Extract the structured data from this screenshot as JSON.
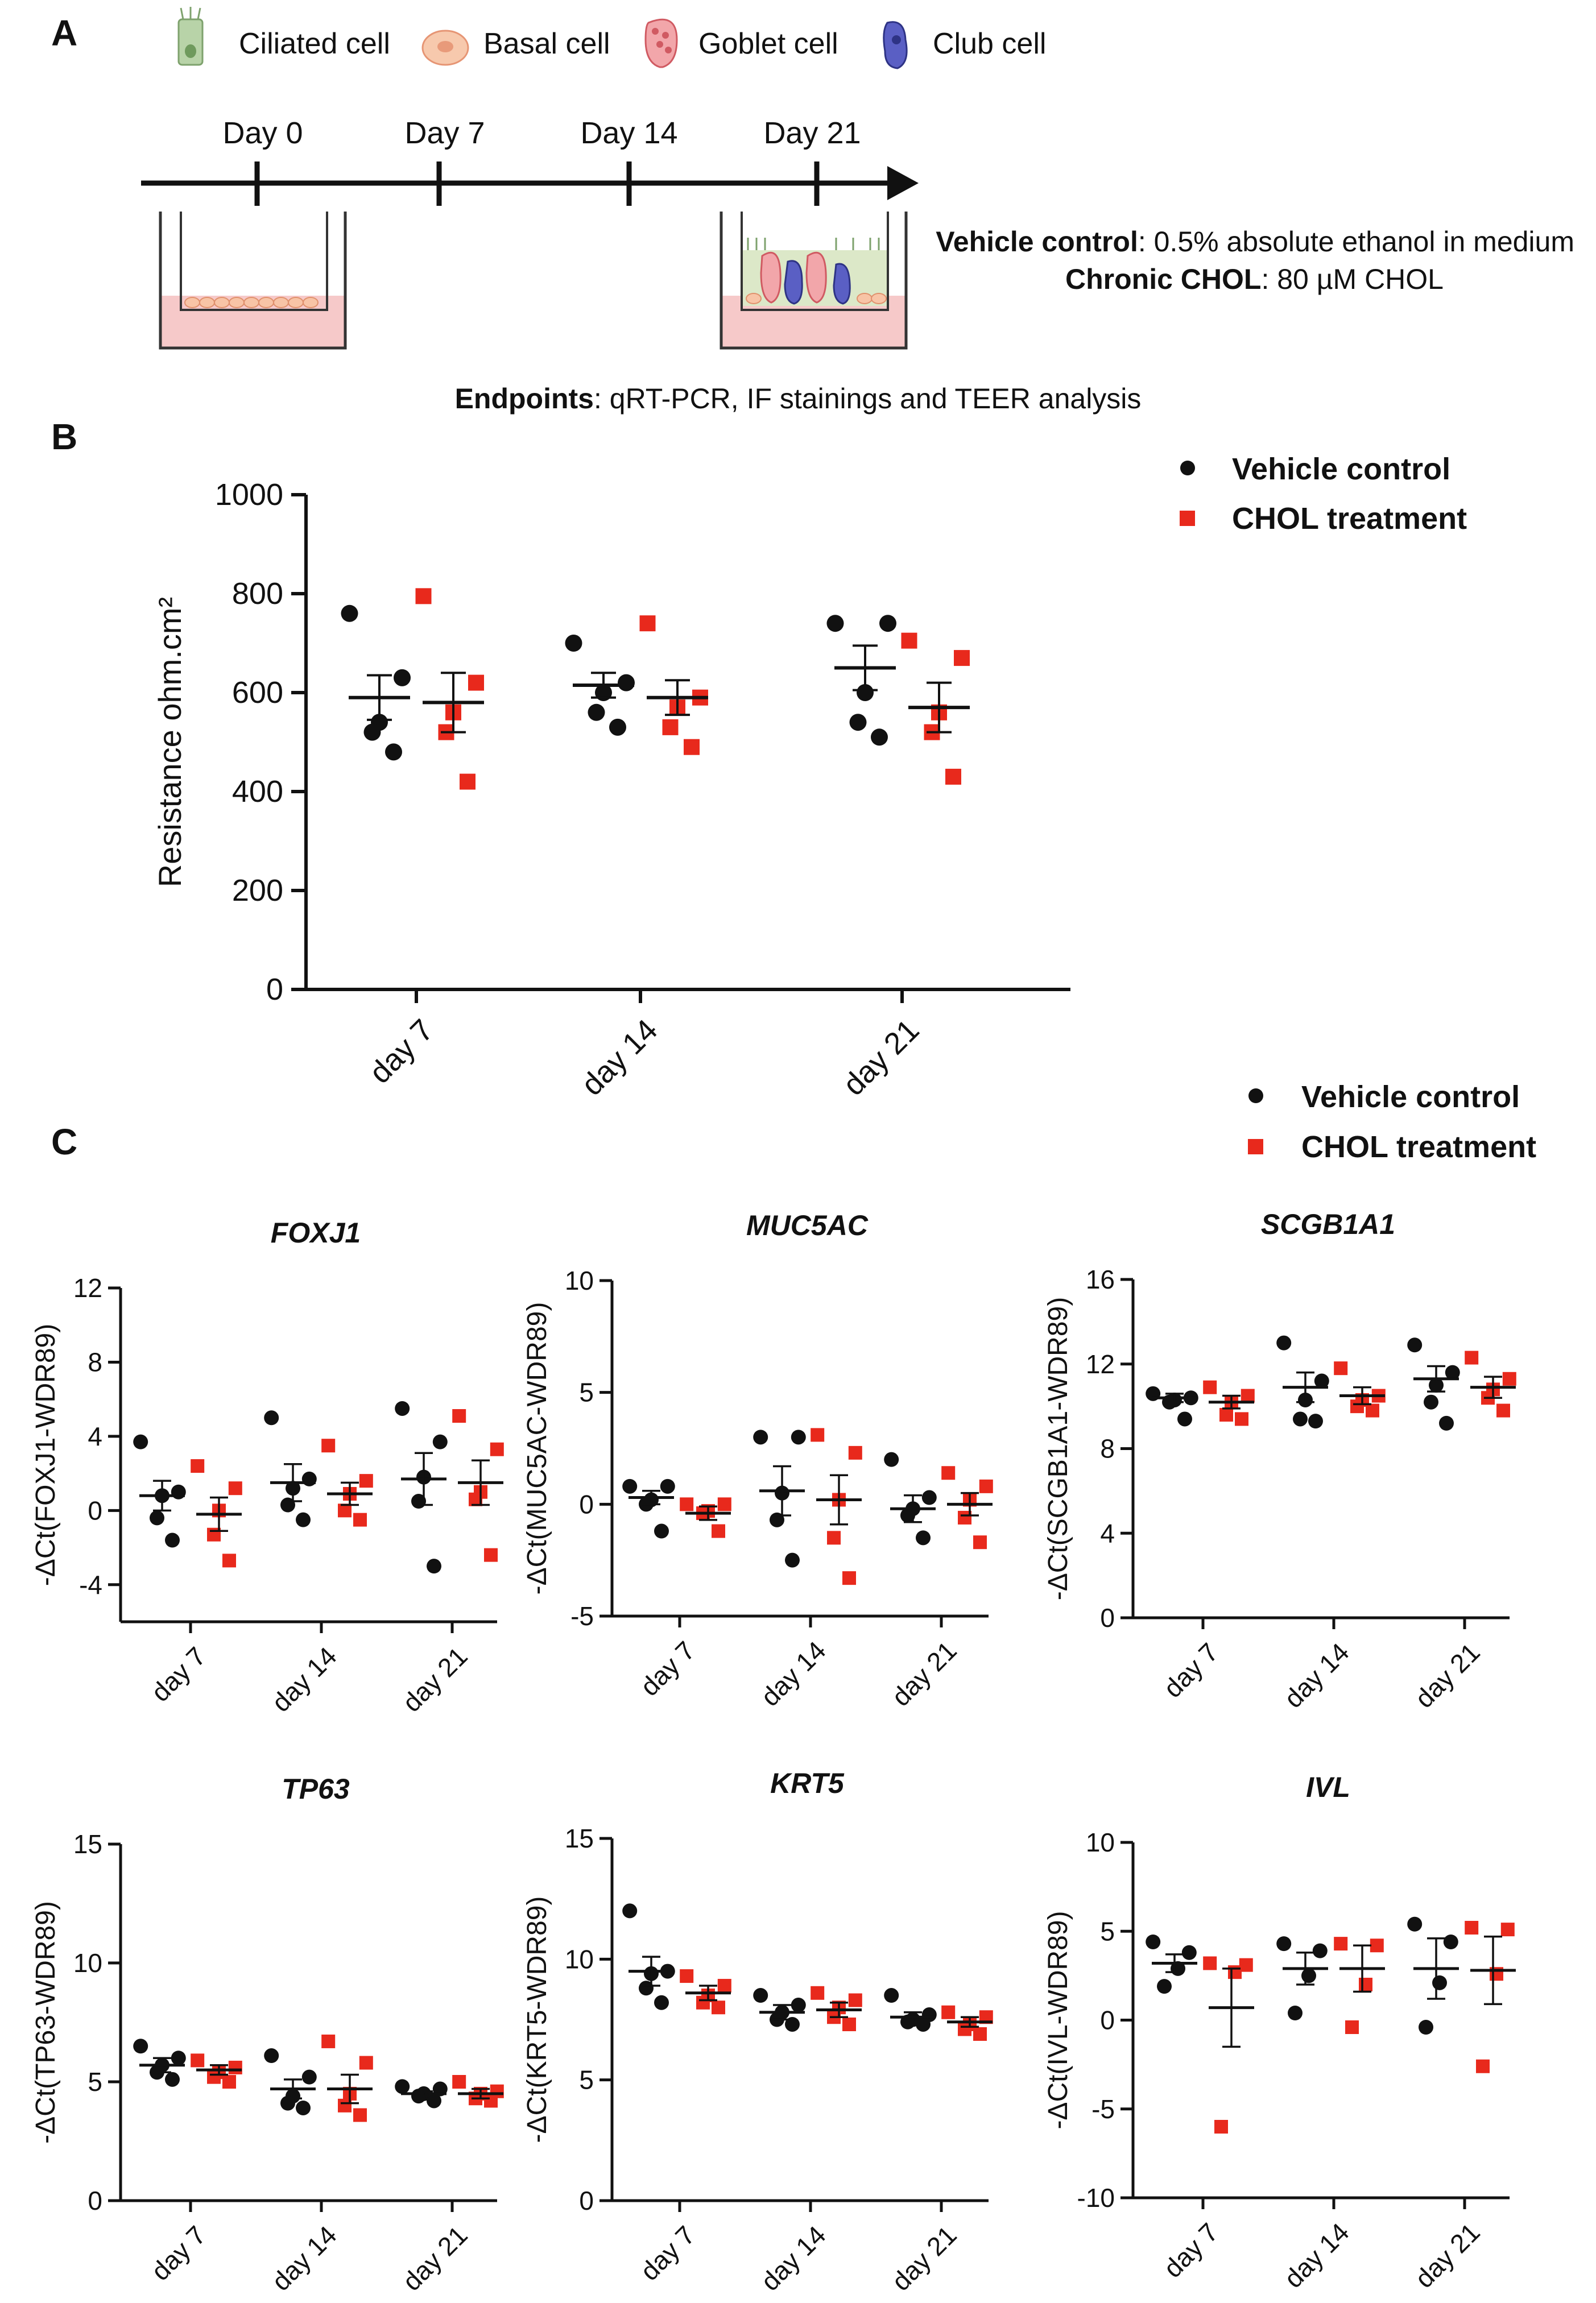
{
  "panelA": {
    "letter": "A",
    "cell_types": [
      {
        "label": "Ciliated cell",
        "icon": "ciliated-cell-icon",
        "color": "#a9c79a"
      },
      {
        "label": "Basal cell",
        "icon": "basal-cell-icon",
        "color": "#f5b79a"
      },
      {
        "label": "Goblet cell",
        "icon": "goblet-cell-icon",
        "color": "#e87a80"
      },
      {
        "label": "Club cell",
        "icon": "club-cell-icon",
        "color": "#4a4fb0"
      }
    ],
    "timeline": [
      "Day 0",
      "Day 7",
      "Day 14",
      "Day 21"
    ],
    "vehicle_name": "Vehicle control",
    "vehicle_desc": ": 0.5% absolute ethanol in medium",
    "chol_name": "Chronic CHOL",
    "chol_desc": ": 80 µM CHOL",
    "endpoints_name": "Endpoints",
    "endpoints_desc": ": qRT-PCR, IF stainings and TEER analysis"
  },
  "panelB": {
    "letter": "B",
    "legend": [
      {
        "label": "Vehicle control",
        "color": "#111111",
        "shape": "circle"
      },
      {
        "label": "CHOL treatment",
        "color": "#e8291c",
        "shape": "square"
      }
    ]
  },
  "panelC": {
    "letter": "C",
    "legend": [
      {
        "label": "Vehicle control",
        "color": "#111111",
        "shape": "circle"
      },
      {
        "label": "CHOL treatment",
        "color": "#e8291c",
        "shape": "square"
      }
    ]
  },
  "colors": {
    "vehicle": "#111111",
    "chol": "#e8291c"
  },
  "chart_data": [
    {
      "id": "teer",
      "type": "scatter",
      "title": "",
      "ylabel": "Resistance ohm.cm²",
      "ylim": [
        0,
        1000
      ],
      "yticks": [
        "0",
        "200",
        "400",
        "600",
        "800",
        "1000"
      ],
      "categories": [
        "day 7",
        "day 14",
        "day 21"
      ],
      "series": [
        {
          "name": "Vehicle control",
          "points": [
            [
              760,
              630,
              540,
              520,
              480
            ],
            [
              700,
              620,
              600,
              560,
              530
            ],
            [
              740,
              740,
              600,
              540,
              510
            ]
          ],
          "mean": [
            590,
            615,
            650
          ],
          "sem": [
            45,
            25,
            45
          ]
        },
        {
          "name": "CHOL treatment",
          "points": [
            [
              795,
              620,
              560,
              520,
              420
            ],
            [
              740,
              590,
              570,
              530,
              490
            ],
            [
              705,
              670,
              560,
              520,
              430
            ]
          ],
          "mean": [
            580,
            590,
            570
          ],
          "sem": [
            60,
            35,
            50
          ]
        }
      ]
    },
    {
      "id": "foxj1",
      "type": "scatter",
      "title": "FOXJ1",
      "ylabel": "-ΔCt(FOXJ1-WDR89)",
      "ylim": [
        -6,
        12
      ],
      "yticks": [
        "-4",
        "0",
        "4",
        "8",
        "12"
      ],
      "categories": [
        "day 7",
        "day 14",
        "day 21"
      ],
      "series": [
        {
          "name": "Vehicle control",
          "points": [
            [
              3.7,
              1.0,
              0.8,
              -0.4,
              -1.6
            ],
            [
              5.0,
              1.7,
              1.2,
              0.3,
              -0.5
            ],
            [
              5.5,
              3.7,
              1.8,
              0.5,
              -3.0
            ]
          ],
          "mean": [
            0.8,
            1.5,
            1.7
          ],
          "sem": [
            0.8,
            1.0,
            1.4
          ]
        },
        {
          "name": "CHOL treatment",
          "points": [
            [
              2.4,
              1.2,
              0.0,
              -1.3,
              -2.7
            ],
            [
              3.5,
              1.6,
              0.9,
              0.0,
              -0.5
            ],
            [
              5.1,
              3.3,
              1.0,
              0.6,
              -2.4
            ]
          ],
          "mean": [
            -0.2,
            0.9,
            1.5
          ],
          "sem": [
            0.9,
            0.6,
            1.2
          ]
        }
      ]
    },
    {
      "id": "muc5ac",
      "type": "scatter",
      "title": "MUC5AC",
      "ylabel": "-ΔCt(MUC5AC-WDR89)",
      "ylim": [
        -5,
        10
      ],
      "yticks": [
        "-5",
        "0",
        "5",
        "10"
      ],
      "categories": [
        "day 7",
        "day 14",
        "day 21"
      ],
      "series": [
        {
          "name": "Vehicle control",
          "points": [
            [
              0.8,
              0.8,
              0.2,
              0.0,
              -1.2
            ],
            [
              3.0,
              3.0,
              0.5,
              -0.7,
              -2.5
            ],
            [
              2.0,
              0.3,
              -0.2,
              -0.5,
              -1.5
            ]
          ],
          "mean": [
            0.3,
            0.6,
            -0.2
          ],
          "sem": [
            0.3,
            1.1,
            0.6
          ]
        },
        {
          "name": "CHOL treatment",
          "points": [
            [
              0.0,
              0.0,
              -0.3,
              -0.4,
              -1.2
            ],
            [
              3.1,
              2.3,
              0.2,
              -1.5,
              -3.3
            ],
            [
              1.4,
              0.8,
              0.2,
              -0.6,
              -1.7
            ]
          ],
          "mean": [
            -0.4,
            0.2,
            0.0
          ],
          "sem": [
            0.3,
            1.1,
            0.5
          ]
        }
      ]
    },
    {
      "id": "scgb1a1",
      "type": "scatter",
      "title": "SCGB1A1",
      "ylabel": "-ΔCt(SCGB1A1-WDR89)",
      "ylim": [
        0,
        16
      ],
      "yticks": [
        "0",
        "4",
        "8",
        "12",
        "16"
      ],
      "categories": [
        "day 7",
        "day 14",
        "day 21"
      ],
      "series": [
        {
          "name": "Vehicle control",
          "points": [
            [
              10.6,
              10.4,
              10.3,
              10.2,
              9.4
            ],
            [
              13.0,
              11.2,
              10.3,
              9.4,
              9.3
            ],
            [
              12.9,
              11.6,
              11.0,
              10.2,
              9.2
            ]
          ],
          "mean": [
            10.4,
            10.9,
            11.3
          ],
          "sem": [
            0.2,
            0.7,
            0.6
          ]
        },
        {
          "name": "CHOL treatment",
          "points": [
            [
              10.9,
              10.5,
              10.2,
              9.6,
              9.4
            ],
            [
              11.8,
              10.5,
              10.3,
              10.0,
              9.8
            ],
            [
              12.3,
              11.3,
              10.8,
              10.4,
              9.8
            ]
          ],
          "mean": [
            10.2,
            10.5,
            10.9
          ],
          "sem": [
            0.3,
            0.4,
            0.5
          ]
        }
      ]
    },
    {
      "id": "tp63",
      "type": "scatter",
      "title": "TP63",
      "ylabel": "-ΔCt(TP63-WDR89)",
      "ylim": [
        0,
        15
      ],
      "yticks": [
        "0",
        "5",
        "10",
        "15"
      ],
      "categories": [
        "day 7",
        "day 14",
        "day 21"
      ],
      "series": [
        {
          "name": "Vehicle control",
          "points": [
            [
              6.5,
              6.0,
              5.7,
              5.4,
              5.1
            ],
            [
              6.1,
              5.2,
              4.4,
              4.1,
              3.9
            ],
            [
              4.8,
              4.7,
              4.5,
              4.4,
              4.2
            ]
          ],
          "mean": [
            5.7,
            4.7,
            4.5
          ],
          "sem": [
            0.3,
            0.4,
            0.1
          ]
        },
        {
          "name": "CHOL treatment",
          "points": [
            [
              5.9,
              5.6,
              5.4,
              5.2,
              5.0
            ],
            [
              6.7,
              5.8,
              4.5,
              4.0,
              3.6
            ],
            [
              5.0,
              4.6,
              4.5,
              4.3,
              4.2
            ]
          ],
          "mean": [
            5.5,
            4.7,
            4.5
          ],
          "sem": [
            0.2,
            0.6,
            0.2
          ]
        }
      ]
    },
    {
      "id": "krt5",
      "type": "scatter",
      "title": "KRT5",
      "ylabel": "-ΔCt(KRT5-WDR89)",
      "ylim": [
        0,
        15
      ],
      "yticks": [
        "0",
        "5",
        "10",
        "15"
      ],
      "categories": [
        "day 7",
        "day 14",
        "day 21"
      ],
      "series": [
        {
          "name": "Vehicle control",
          "points": [
            [
              12.0,
              9.5,
              9.4,
              8.8,
              8.2
            ],
            [
              8.5,
              8.1,
              7.8,
              7.5,
              7.3
            ],
            [
              8.5,
              7.7,
              7.5,
              7.4,
              7.3
            ]
          ],
          "mean": [
            9.5,
            7.8,
            7.6
          ],
          "sem": [
            0.6,
            0.3,
            0.2
          ]
        },
        {
          "name": "CHOL treatment",
          "points": [
            [
              9.3,
              8.9,
              8.5,
              8.2,
              8.0
            ],
            [
              8.6,
              8.3,
              8.0,
              7.6,
              7.3
            ],
            [
              7.8,
              7.6,
              7.3,
              7.1,
              6.9
            ]
          ],
          "mean": [
            8.6,
            7.9,
            7.4
          ],
          "sem": [
            0.3,
            0.3,
            0.2
          ]
        }
      ]
    },
    {
      "id": "ivl",
      "type": "scatter",
      "title": "IVL",
      "ylabel": "-ΔCt(IVL-WDR89)",
      "ylim": [
        -10,
        10
      ],
      "yticks": [
        "-10",
        "-5",
        "0",
        "5",
        "10"
      ],
      "categories": [
        "day 7",
        "day 14",
        "day 21"
      ],
      "series": [
        {
          "name": "Vehicle control",
          "points": [
            [
              4.4,
              3.8,
              2.9,
              1.9
            ],
            [
              4.3,
              3.9,
              2.5,
              0.4
            ],
            [
              5.4,
              4.4,
              2.1,
              -0.4
            ]
          ],
          "mean": [
            3.2,
            2.9,
            2.9
          ],
          "sem": [
            0.5,
            0.9,
            1.7
          ]
        },
        {
          "name": "CHOL treatment",
          "points": [
            [
              3.2,
              3.1,
              2.7,
              -6.0
            ],
            [
              4.3,
              4.2,
              2.0,
              -0.4
            ],
            [
              5.2,
              5.1,
              2.6,
              -2.6
            ]
          ],
          "mean": [
            0.7,
            2.9,
            2.8
          ],
          "sem": [
            2.2,
            1.3,
            1.9
          ]
        }
      ]
    }
  ]
}
